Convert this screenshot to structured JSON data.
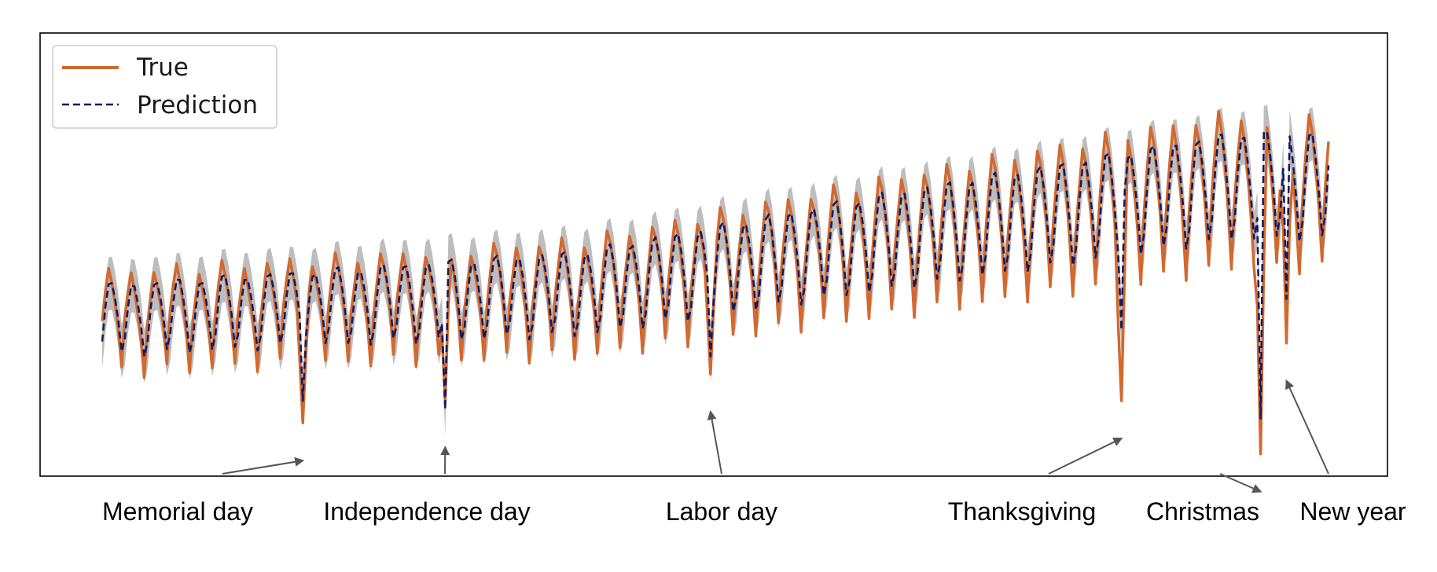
{
  "chart_data": {
    "type": "line",
    "title": "",
    "xlabel": "",
    "ylabel": "",
    "x_count": 380,
    "ylim": [
      0,
      100
    ],
    "grid": false,
    "legend_placement": "top-left",
    "legend": [
      "True",
      "Prediction"
    ],
    "band": {
      "name": "prediction interval",
      "color": "#bdbdbd",
      "half_width": 6
    },
    "series": [
      {
        "name": "True",
        "color": "#d2692f",
        "style": "solid"
      },
      {
        "name": "Prediction",
        "color": "#141a5c",
        "style": "dashed"
      }
    ],
    "weekly_cycle": {
      "period": 7,
      "start_index": 0,
      "amplitude_start": 12,
      "amplitude_end": 17,
      "trend_points": [
        [
          0,
          34
        ],
        [
          150,
          40
        ],
        [
          230,
          50
        ],
        [
          300,
          58
        ],
        [
          350,
          64
        ]
      ]
    },
    "holidays": [
      {
        "label": "Memorial day",
        "x": 62,
        "true_value": 12,
        "pred_value": 17
      },
      {
        "label": "Independence day",
        "x": 106,
        "true_value": 17,
        "pred_value": 15
      },
      {
        "label": "Labor day",
        "x": 188,
        "true_value": 23,
        "pred_value": 27
      },
      {
        "label": "Thanksgiving",
        "x": 315,
        "true_value": 17,
        "pred_value": 33
      },
      {
        "label": "Christmas",
        "x": 358,
        "true_value": 5,
        "pred_value": 13
      },
      {
        "label": "New year",
        "x": 366,
        "true_value": 30,
        "pred_value": 40
      }
    ]
  }
}
